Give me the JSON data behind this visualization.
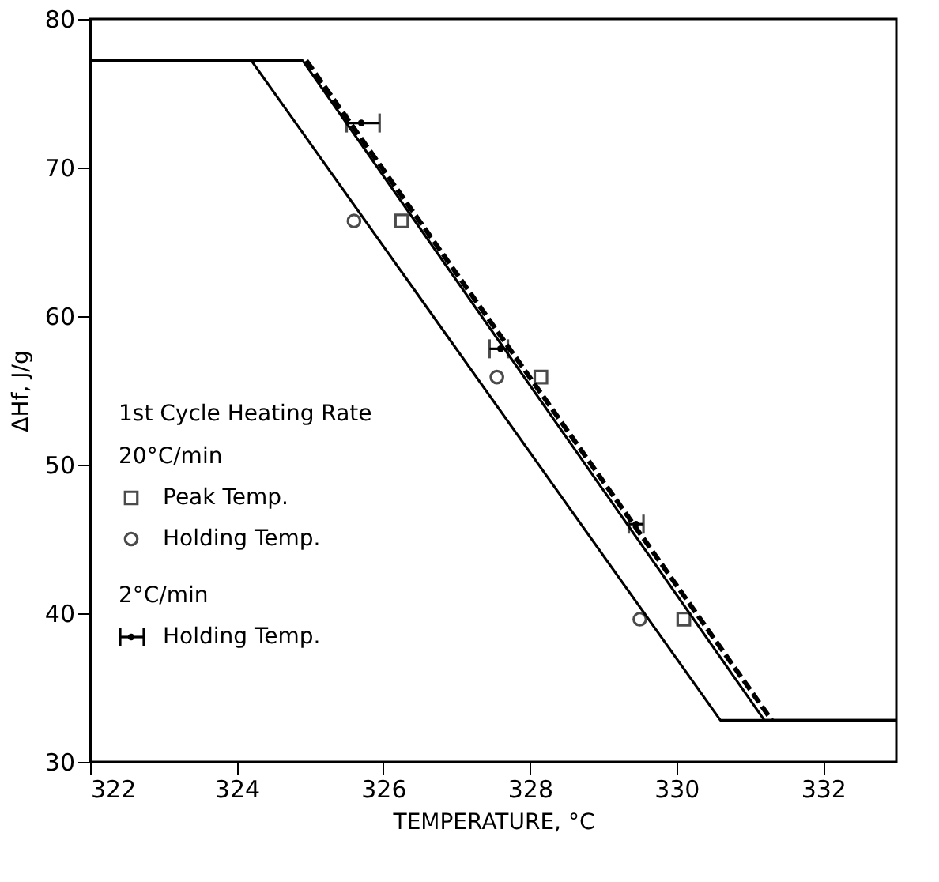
{
  "chart_data": {
    "type": "line",
    "xlabel": "TEMPERATURE, °C",
    "ylabel": "ΔHf, J/g",
    "xlim": [
      322,
      333
    ],
    "ylim": [
      30,
      80
    ],
    "xticks": [
      322,
      324,
      326,
      328,
      330,
      332
    ],
    "yticks": [
      30,
      40,
      50,
      60,
      70,
      80
    ],
    "grid": false,
    "legend": "left",
    "legend_title": "1st Cycle Heating Rate",
    "annotations": [
      "20°C/min",
      "2°C/min"
    ],
    "series": [
      {
        "type": "line",
        "color": "#000000",
        "line_style": "solid",
        "marker": "none",
        "x": [
          322,
          324.2,
          330.6,
          333
        ],
        "values": [
          77.2,
          77.2,
          32.8,
          32.8
        ]
      },
      {
        "type": "line",
        "color": "#000000",
        "line_style": "solid",
        "marker": "none",
        "x": [
          324.2,
          324.9,
          331.2,
          333
        ],
        "values": [
          77.2,
          77.2,
          32.8,
          32.8
        ]
      },
      {
        "type": "line",
        "color": "#000000",
        "line_style": "dashed",
        "marker": "none",
        "x": [
          324.95,
          331.3
        ],
        "values": [
          77.2,
          32.8
        ]
      },
      {
        "type": "scatter",
        "name": "Peak Temp.",
        "color": "#000000",
        "marker": "square",
        "x": [
          326.25,
          328.15,
          330.1
        ],
        "values": [
          66.4,
          55.9,
          39.6
        ]
      },
      {
        "type": "scatter",
        "name": "Holding Temp.",
        "color": "#000000",
        "marker": "circle",
        "x": [
          325.6,
          327.55,
          329.5
        ],
        "values": [
          66.4,
          55.9,
          39.6
        ]
      },
      {
        "type": "scatter",
        "name": "Holding Temp.",
        "color": "#000000",
        "x": [
          325.7,
          327.6,
          329.45
        ],
        "values": [
          73.0,
          57.8,
          46.0
        ],
        "xerrors": [
          [
            325.5,
            325.95
          ],
          [
            327.45,
            327.7
          ],
          [
            329.35,
            329.55
          ]
        ]
      }
    ]
  }
}
